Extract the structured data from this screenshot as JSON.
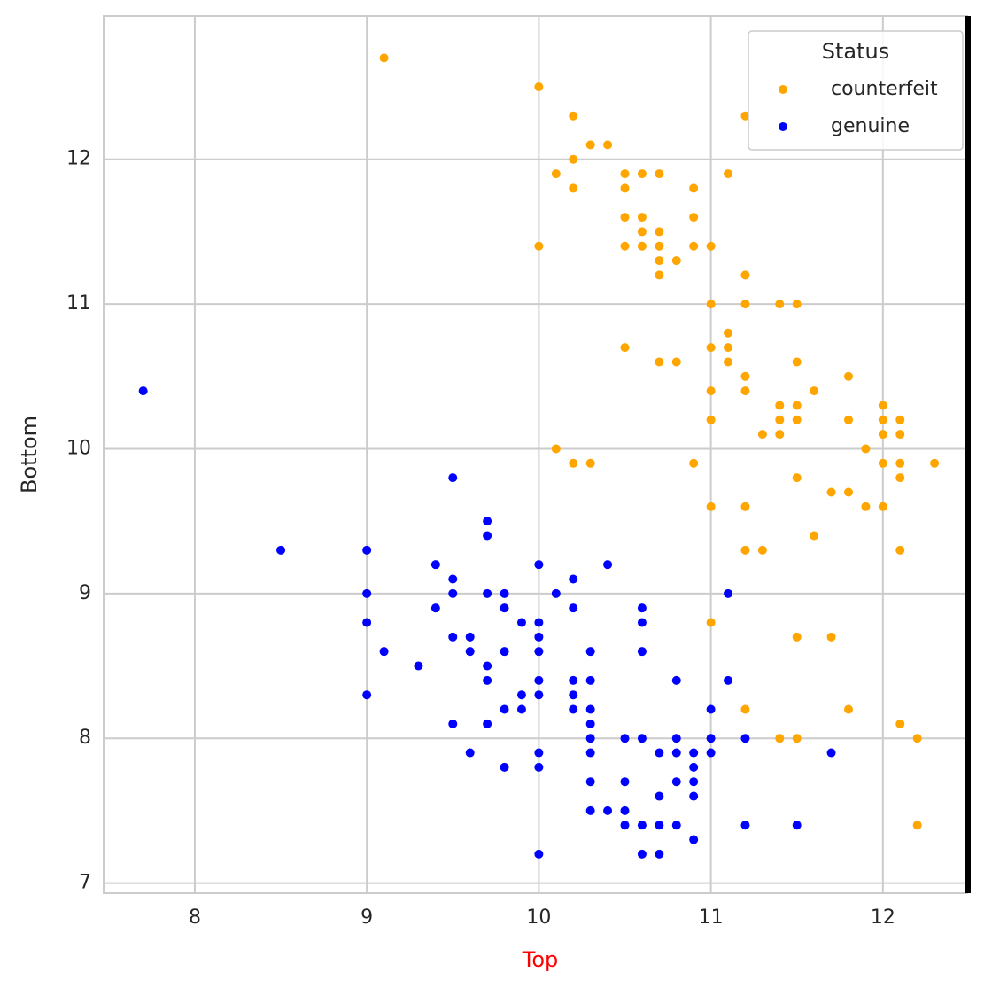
{
  "chart_data": {
    "type": "scatter",
    "x_label": "Top",
    "y_label": "Bottom",
    "legend_title": "Status",
    "legend": "upper right",
    "grid": true,
    "xlim": [
      7.47,
      12.49
    ],
    "ylim": [
      6.93,
      12.99
    ],
    "xticks": [
      8,
      9,
      10,
      11,
      12
    ],
    "yticks": [
      7,
      8,
      9,
      10,
      11,
      12
    ],
    "series": [
      {
        "name": "counterfeit",
        "color": "#ffa500",
        "x": [
          9.1,
          10,
          10.2,
          11.2,
          10.3,
          10.4,
          10.2,
          10.1,
          10.5,
          10.6,
          10.7,
          11.1,
          10.2,
          10.5,
          10.9,
          10.5,
          10.6,
          10.9,
          10.6,
          10.7,
          10,
          10.5,
          10.6,
          10.7,
          10.9,
          11,
          10.7,
          10.8,
          10.7,
          11.2,
          11,
          11.2,
          11.4,
          11.5,
          11.1,
          10.5,
          11,
          11.1,
          10.7,
          10.8,
          11.1,
          11.5,
          11.2,
          11.8,
          11,
          11.2,
          11.6,
          11.4,
          11.5,
          12,
          11,
          11.4,
          11.5,
          11.8,
          12,
          12.1,
          11.3,
          11.4,
          12,
          12.1,
          10.1,
          11.9,
          10.2,
          10.3,
          10.9,
          12,
          12.1,
          12.3,
          11.5,
          12.1,
          11.7,
          11.8,
          11,
          11.2,
          11.9,
          12,
          11.6,
          11.2,
          11.3,
          12.1,
          11,
          11.5,
          11.7,
          11.2,
          11.8,
          12.1,
          11.4,
          11.5,
          12.2,
          12.2
        ],
        "values": [
          12.7,
          12.5,
          12.3,
          12.3,
          12.1,
          12.1,
          12.0,
          11.9,
          11.9,
          11.9,
          11.9,
          11.9,
          11.8,
          11.8,
          11.8,
          11.6,
          11.6,
          11.6,
          11.5,
          11.5,
          11.4,
          11.4,
          11.4,
          11.4,
          11.4,
          11.4,
          11.3,
          11.3,
          11.2,
          11.2,
          11.0,
          11.0,
          11.0,
          11.0,
          10.8,
          10.7,
          10.7,
          10.7,
          10.6,
          10.6,
          10.6,
          10.6,
          10.5,
          10.5,
          10.4,
          10.4,
          10.4,
          10.3,
          10.3,
          10.3,
          10.2,
          10.2,
          10.2,
          10.2,
          10.2,
          10.2,
          10.1,
          10.1,
          10.1,
          10.1,
          10.0,
          10.0,
          9.9,
          9.9,
          9.9,
          9.9,
          9.9,
          9.9,
          9.8,
          9.8,
          9.7,
          9.7,
          9.6,
          9.6,
          9.6,
          9.6,
          9.4,
          9.3,
          9.3,
          9.3,
          8.8,
          8.7,
          8.7,
          8.2,
          8.2,
          8.1,
          8.0,
          8.0,
          8.0,
          7.4
        ]
      },
      {
        "name": "genuine",
        "color": "#0000ff",
        "x": [
          7.7,
          9.5,
          9.7,
          9.7,
          8.5,
          9,
          9.4,
          10,
          10.4,
          9.5,
          10.2,
          9,
          9.5,
          9.7,
          9.8,
          10.1,
          11.1,
          9.4,
          9.8,
          10.2,
          10.6,
          9,
          9.9,
          10,
          10.6,
          9.5,
          9.6,
          10,
          9.1,
          9.6,
          9.8,
          10,
          10.3,
          10.6,
          9.3,
          9.7,
          9.7,
          10,
          10.2,
          10.3,
          10.8,
          11.1,
          9,
          9.9,
          10,
          10.2,
          9.8,
          9.9,
          10.2,
          10.3,
          11,
          9.5,
          9.7,
          10.3,
          10.3,
          10.5,
          10.6,
          10.8,
          11,
          11.2,
          9.6,
          10,
          10.3,
          10.7,
          10.8,
          10.9,
          11,
          11.7,
          9.8,
          10,
          10.9,
          10.3,
          10.5,
          10.8,
          10.9,
          10.7,
          10.9,
          10.3,
          10.4,
          10.5,
          10.5,
          10.6,
          10.7,
          10.8,
          11.2,
          11.5,
          10.9,
          10,
          10.6,
          10.7
        ],
        "values": [
          10.4,
          9.8,
          9.5,
          9.4,
          9.3,
          9.3,
          9.2,
          9.2,
          9.2,
          9.1,
          9.1,
          9.0,
          9.0,
          9.0,
          9.0,
          9.0,
          9.0,
          8.9,
          8.9,
          8.9,
          8.9,
          8.8,
          8.8,
          8.8,
          8.8,
          8.7,
          8.7,
          8.7,
          8.6,
          8.6,
          8.6,
          8.6,
          8.6,
          8.6,
          8.5,
          8.5,
          8.4,
          8.4,
          8.4,
          8.4,
          8.4,
          8.4,
          8.3,
          8.3,
          8.3,
          8.3,
          8.2,
          8.2,
          8.2,
          8.2,
          8.2,
          8.1,
          8.1,
          8.1,
          8.0,
          8.0,
          8.0,
          8.0,
          8.0,
          8.0,
          7.9,
          7.9,
          7.9,
          7.9,
          7.9,
          7.9,
          7.9,
          7.9,
          7.8,
          7.8,
          7.8,
          7.7,
          7.7,
          7.7,
          7.7,
          7.6,
          7.6,
          7.5,
          7.5,
          7.5,
          7.4,
          7.4,
          7.4,
          7.4,
          7.4,
          7.4,
          7.3,
          7.2,
          7.2,
          7.2
        ]
      }
    ]
  }
}
